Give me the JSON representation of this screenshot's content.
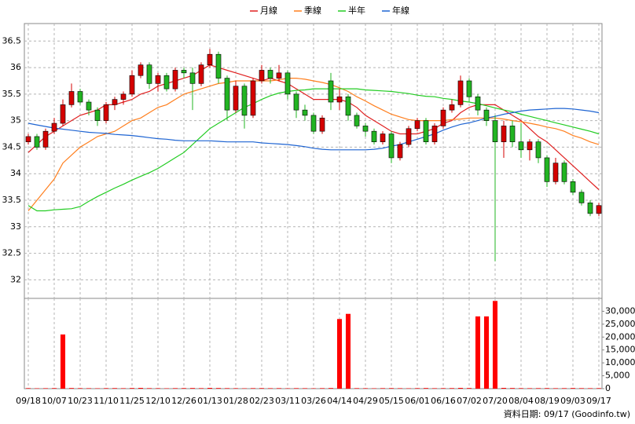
{
  "chart_data": {
    "type": "candlestick",
    "categories": [
      "09/18",
      null,
      null,
      "10/07",
      null,
      null,
      "10/23",
      null,
      null,
      "11/10",
      null,
      null,
      "11/25",
      null,
      null,
      "12/10",
      null,
      null,
      "12/26",
      null,
      null,
      "01/13",
      null,
      null,
      "01/28",
      null,
      null,
      "02/23",
      null,
      null,
      "03/11",
      null,
      null,
      "03/26",
      null,
      null,
      "04/14",
      null,
      null,
      "04/29",
      null,
      null,
      "05/15",
      null,
      null,
      "06/01",
      null,
      null,
      "06/16",
      null,
      null,
      "07/02",
      null,
      null,
      "07/20",
      null,
      null,
      "08/04",
      null,
      null,
      "08/19",
      null,
      null,
      "09/03",
      null,
      null,
      "09/17"
    ],
    "open": [
      34.6,
      34.7,
      34.5,
      34.8,
      34.95,
      35.3,
      35.55,
      35.35,
      35.2,
      35.0,
      35.3,
      35.4,
      35.5,
      35.85,
      36.05,
      35.7,
      35.85,
      35.6,
      35.95,
      35.9,
      35.7,
      36.05,
      36.25,
      35.8,
      35.2,
      35.65,
      35.1,
      35.75,
      35.95,
      35.8,
      35.9,
      35.5,
      35.2,
      35.1,
      34.8,
      35.75,
      35.35,
      35.45,
      35.1,
      34.9,
      34.8,
      34.6,
      34.75,
      34.3,
      34.55,
      34.85,
      35.0,
      34.6,
      34.9,
      35.2,
      35.3,
      35.75,
      35.45,
      35.2,
      35.0,
      34.6,
      34.9,
      34.6,
      34.45,
      34.6,
      34.3,
      33.85,
      34.2,
      33.85,
      33.65,
      33.45,
      33.25
    ],
    "high": [
      34.75,
      34.75,
      34.85,
      35.05,
      35.4,
      35.7,
      35.6,
      35.4,
      35.25,
      35.35,
      35.45,
      35.55,
      35.95,
      36.1,
      36.1,
      35.9,
      35.9,
      36.0,
      36.0,
      36.0,
      36.1,
      36.35,
      36.3,
      35.85,
      35.75,
      35.7,
      35.8,
      36.05,
      36.0,
      36.05,
      35.95,
      35.55,
      35.3,
      35.15,
      35.1,
      35.9,
      35.6,
      35.5,
      35.15,
      34.95,
      34.85,
      34.8,
      34.8,
      34.6,
      34.9,
      35.05,
      35.05,
      34.95,
      35.25,
      35.4,
      35.85,
      35.8,
      35.5,
      35.25,
      35.1,
      35.0,
      35.0,
      34.95,
      34.65,
      34.65,
      34.35,
      34.3,
      34.25,
      33.9,
      33.7,
      33.5,
      33.45
    ],
    "low": [
      34.55,
      34.45,
      34.45,
      34.75,
      34.9,
      35.25,
      35.3,
      35.1,
      34.9,
      34.95,
      35.2,
      35.3,
      35.45,
      35.8,
      35.6,
      35.55,
      35.55,
      35.55,
      35.8,
      35.2,
      35.65,
      36.0,
      35.7,
      35.0,
      35.15,
      34.85,
      35.05,
      35.7,
      35.7,
      35.75,
      35.4,
      35.05,
      35.0,
      34.75,
      34.75,
      35.2,
      35.2,
      35.0,
      34.85,
      34.7,
      34.55,
      34.55,
      34.2,
      34.25,
      34.5,
      34.8,
      34.55,
      34.55,
      34.85,
      35.15,
      35.25,
      35.35,
      35.1,
      34.9,
      32.35,
      34.3,
      34.5,
      34.3,
      34.25,
      34.2,
      33.75,
      33.8,
      33.8,
      33.6,
      33.4,
      33.2,
      33.2
    ],
    "close": [
      34.7,
      34.5,
      34.8,
      34.95,
      35.3,
      35.55,
      35.35,
      35.2,
      35.0,
      35.3,
      35.4,
      35.5,
      35.85,
      36.05,
      35.7,
      35.85,
      35.6,
      35.95,
      35.9,
      35.7,
      36.05,
      36.25,
      35.8,
      35.2,
      35.65,
      35.1,
      35.75,
      35.95,
      35.8,
      35.9,
      35.5,
      35.2,
      35.1,
      34.8,
      35.05,
      35.35,
      35.45,
      35.1,
      34.9,
      34.8,
      34.6,
      34.75,
      34.3,
      34.55,
      34.85,
      35.0,
      34.6,
      34.9,
      35.2,
      35.3,
      35.75,
      35.45,
      35.2,
      35.0,
      34.6,
      34.9,
      34.6,
      34.45,
      34.6,
      34.3,
      33.85,
      34.2,
      33.85,
      33.65,
      33.45,
      33.25,
      33.4
    ],
    "up_color": "#d40000",
    "down_color": "#22b422",
    "series": [
      {
        "name": "月線",
        "color": "#e02020",
        "values": [
          34.4,
          34.55,
          34.7,
          34.8,
          34.9,
          35.0,
          35.1,
          35.15,
          35.2,
          35.3,
          35.3,
          35.35,
          35.4,
          35.5,
          35.55,
          35.65,
          35.7,
          35.75,
          35.8,
          35.85,
          35.95,
          36.05,
          36.0,
          35.95,
          35.9,
          35.85,
          35.8,
          35.75,
          35.8,
          35.75,
          35.7,
          35.6,
          35.5,
          35.4,
          35.4,
          35.4,
          35.4,
          35.35,
          35.25,
          35.1,
          35.0,
          34.9,
          34.8,
          34.75,
          34.75,
          34.75,
          34.8,
          34.85,
          34.95,
          35.0,
          35.15,
          35.25,
          35.3,
          35.3,
          35.3,
          35.2,
          35.1,
          35.0,
          34.85,
          34.7,
          34.6,
          34.45,
          34.3,
          34.15,
          34.0,
          33.85,
          33.7
        ]
      },
      {
        "name": "季線",
        "color": "#ff7f1e",
        "values": [
          33.3,
          33.5,
          33.7,
          33.9,
          34.2,
          34.35,
          34.5,
          34.6,
          34.7,
          34.75,
          34.8,
          34.9,
          35.0,
          35.05,
          35.15,
          35.25,
          35.3,
          35.4,
          35.5,
          35.55,
          35.6,
          35.65,
          35.7,
          35.72,
          35.75,
          35.75,
          35.75,
          35.75,
          35.75,
          35.77,
          35.8,
          35.8,
          35.78,
          35.75,
          35.72,
          35.68,
          35.62,
          35.55,
          35.45,
          35.37,
          35.28,
          35.2,
          35.12,
          35.07,
          35.02,
          35.0,
          35.0,
          35.0,
          35.0,
          35.02,
          35.03,
          35.05,
          35.05,
          35.05,
          35.05,
          35.03,
          35.0,
          34.98,
          34.95,
          34.92,
          34.88,
          34.85,
          34.8,
          34.72,
          34.67,
          34.6,
          34.55
        ]
      },
      {
        "name": "半年",
        "color": "#22cc22",
        "values": [
          33.4,
          33.3,
          33.3,
          33.32,
          33.33,
          33.34,
          33.38,
          33.48,
          33.57,
          33.65,
          33.73,
          33.8,
          33.88,
          33.95,
          34.02,
          34.1,
          34.2,
          34.3,
          34.4,
          34.55,
          34.7,
          34.85,
          34.95,
          35.05,
          35.15,
          35.25,
          35.32,
          35.4,
          35.47,
          35.52,
          35.55,
          35.57,
          35.58,
          35.6,
          35.6,
          35.6,
          35.6,
          35.6,
          35.6,
          35.58,
          35.57,
          35.56,
          35.55,
          35.53,
          35.51,
          35.48,
          35.46,
          35.45,
          35.42,
          35.4,
          35.37,
          35.35,
          35.32,
          35.28,
          35.24,
          35.2,
          35.17,
          35.12,
          35.08,
          35.04,
          35.0,
          34.96,
          34.92,
          34.88,
          34.84,
          34.8,
          34.75
        ]
      },
      {
        "name": "年線",
        "color": "#1e64d2",
        "values": [
          34.95,
          34.92,
          34.89,
          34.86,
          34.84,
          34.82,
          34.8,
          34.78,
          34.77,
          34.76,
          34.74,
          34.73,
          34.72,
          34.7,
          34.68,
          34.66,
          34.65,
          34.63,
          34.62,
          34.62,
          34.62,
          34.62,
          34.61,
          34.6,
          34.6,
          34.6,
          34.6,
          34.58,
          34.57,
          34.56,
          34.55,
          34.53,
          34.51,
          34.48,
          34.46,
          34.45,
          34.45,
          34.45,
          34.45,
          34.45,
          34.46,
          34.48,
          34.52,
          34.55,
          34.6,
          34.65,
          34.7,
          34.75,
          34.82,
          34.88,
          34.93,
          34.96,
          35.0,
          35.05,
          35.08,
          35.12,
          35.15,
          35.18,
          35.2,
          35.21,
          35.22,
          35.23,
          35.23,
          35.22,
          35.2,
          35.18,
          35.15
        ]
      }
    ],
    "ylim": [
      31.65,
      36.83
    ],
    "yticks": [
      32,
      32.5,
      33,
      33.5,
      34,
      34.5,
      35,
      35.5,
      36,
      36.5
    ],
    "volume": {
      "color": "#ff0000",
      "values": [
        200,
        150,
        180,
        220,
        21000,
        250,
        200,
        180,
        150,
        200,
        220,
        180,
        250,
        300,
        200,
        180,
        150,
        200,
        220,
        250,
        200,
        300,
        250,
        200,
        180,
        150,
        200,
        220,
        180,
        200,
        150,
        200,
        180,
        150,
        200,
        250,
        27000,
        29000,
        200,
        180,
        150,
        200,
        220,
        180,
        150,
        200,
        250,
        180,
        200,
        220,
        300,
        250,
        28000,
        28000,
        34000,
        300,
        250,
        200,
        180,
        200,
        220,
        180,
        200,
        250,
        200,
        180,
        200
      ],
      "ylim": [
        0,
        35000
      ],
      "yticks": [
        0,
        {
          "value": 5000,
          "label": "5,000"
        },
        {
          "value": 10000,
          "label": "10,000"
        },
        {
          "value": 15000,
          "label": "15,000"
        },
        {
          "value": 20000,
          "label": "20,000"
        },
        {
          "value": 25000,
          "label": "25,000"
        },
        {
          "value": 30000,
          "label": "30,000"
        }
      ]
    },
    "grid": true,
    "legend": "top",
    "footer": "資料日期: 09/17   (Goodinfo.tw)"
  }
}
